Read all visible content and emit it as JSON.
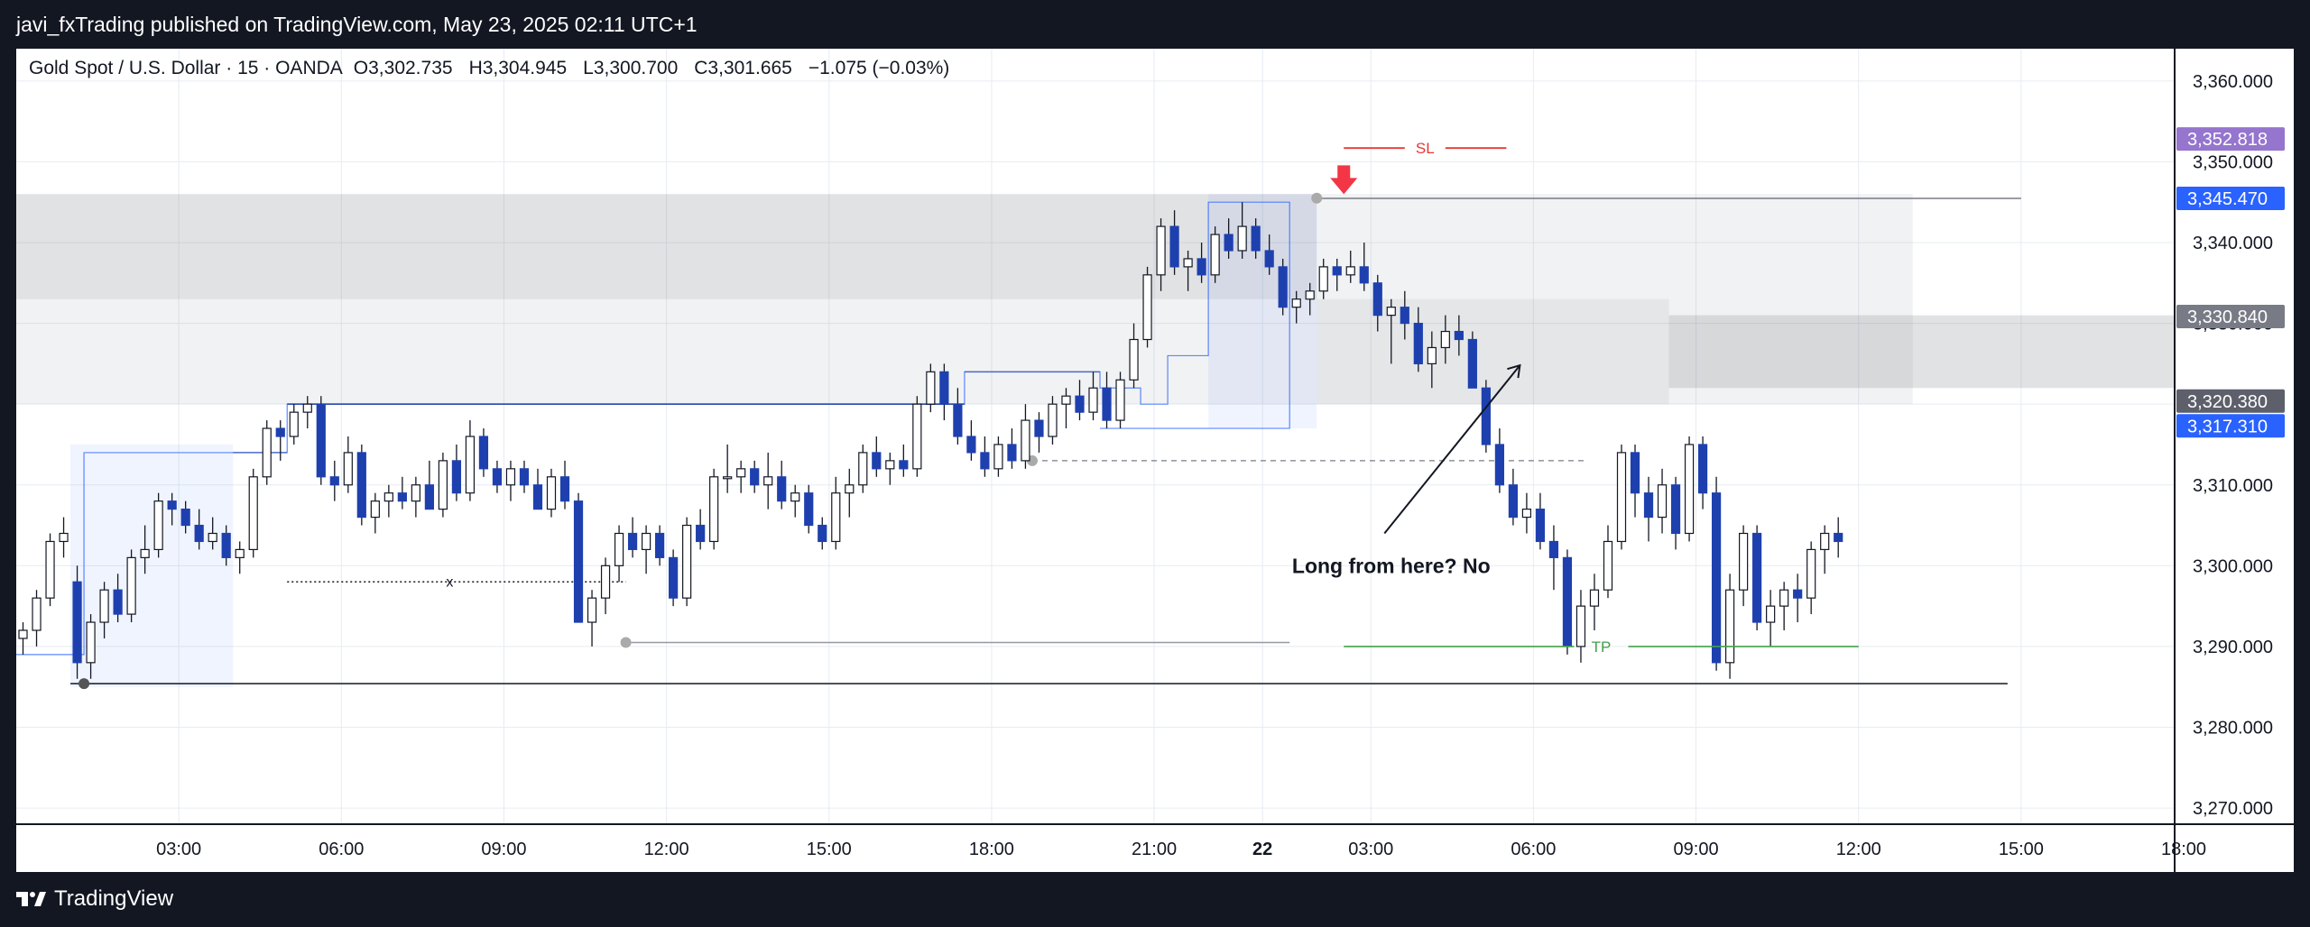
{
  "header": {
    "published": "javi_fxTrading published on TradingView.com, May 23, 2025 02:11 UTC+1"
  },
  "legend": {
    "symbol": "Gold Spot / U.S. Dollar · 15 · OANDA",
    "open": "O3,302.735",
    "high": "H3,304.945",
    "low": "L3,300.700",
    "close": "C3,301.665",
    "change": "−1.075 (−0.03%)"
  },
  "footer": {
    "brand": "TradingView"
  },
  "annotations": {
    "sl": "SL",
    "tp": "TP",
    "x_mark": "x",
    "note": "Long from here? No"
  },
  "colors": {
    "bull": "#ffffff",
    "bear": "#1e40af",
    "sl": "#e53935",
    "tp": "#43a047",
    "arrow": "#f23645",
    "grid": "#e6ecf2",
    "zone": "#d1d4dc"
  },
  "price_tags": [
    {
      "value": 3352.818,
      "label": "3,352.818",
      "color": "#9575cd"
    },
    {
      "value": 3345.47,
      "label": "3,345.470",
      "color": "#2962ff"
    },
    {
      "value": 3330.84,
      "label": "3,330.840",
      "color": "#787b86"
    },
    {
      "value": 3320.38,
      "label": "3,320.380",
      "color": "#5d606b"
    },
    {
      "value": 3317.31,
      "label": "3,317.310",
      "color": "#2962ff"
    }
  ],
  "chart_data": {
    "type": "candlestick",
    "interval": "15m",
    "y_range": [
      3268,
      3364
    ],
    "y_ticks": [
      {
        "value": 3360,
        "label": "3,360.000"
      },
      {
        "value": 3350,
        "label": "3,350.000"
      },
      {
        "value": 3340,
        "label": "3,340.000"
      },
      {
        "value": 3330,
        "label": "3,330.000"
      },
      {
        "value": 3320,
        "label": "3,320.000"
      },
      {
        "value": 3310,
        "label": "3,310.000"
      },
      {
        "value": 3300,
        "label": "3,300.000"
      },
      {
        "value": 3290,
        "label": "3,290.000"
      },
      {
        "value": 3280,
        "label": "3,280.000"
      },
      {
        "value": 3270,
        "label": "3,270.000"
      }
    ],
    "x_range": [
      0,
      158
    ],
    "x_ticks": [
      {
        "x": 12,
        "label": "03:00",
        "bold": false
      },
      {
        "x": 24,
        "label": "06:00",
        "bold": false
      },
      {
        "x": 36,
        "label": "09:00",
        "bold": false
      },
      {
        "x": 48,
        "label": "12:00",
        "bold": false
      },
      {
        "x": 60,
        "label": "15:00",
        "bold": false
      },
      {
        "x": 72,
        "label": "18:00",
        "bold": false
      },
      {
        "x": 84,
        "label": "21:00",
        "bold": false
      },
      {
        "x": 92,
        "label": "22",
        "bold": true
      },
      {
        "x": 100,
        "label": "03:00",
        "bold": false
      },
      {
        "x": 112,
        "label": "06:00",
        "bold": false
      },
      {
        "x": 124,
        "label": "09:00",
        "bold": false
      },
      {
        "x": 136,
        "label": "12:00",
        "bold": false
      },
      {
        "x": 148,
        "label": "15:00",
        "bold": false
      },
      {
        "x": 160,
        "label": "18:00",
        "bold": false
      }
    ],
    "candles": [
      [
        3291,
        3293,
        3289,
        3292
      ],
      [
        3292,
        3297,
        3290,
        3296
      ],
      [
        3296,
        3304,
        3295,
        3303
      ],
      [
        3303,
        3306,
        3301,
        3304
      ],
      [
        3298,
        3300,
        3286,
        3288
      ],
      [
        3288,
        3294,
        3286,
        3293
      ],
      [
        3293,
        3298,
        3291,
        3297
      ],
      [
        3297,
        3299,
        3293,
        3294
      ],
      [
        3294,
        3302,
        3293,
        3301
      ],
      [
        3301,
        3305,
        3299,
        3302
      ],
      [
        3302,
        3309,
        3301,
        3308
      ],
      [
        3308,
        3309,
        3305,
        3307
      ],
      [
        3307,
        3308,
        3304,
        3305
      ],
      [
        3305,
        3307,
        3302,
        3303
      ],
      [
        3303,
        3306,
        3302,
        3304
      ],
      [
        3304,
        3305,
        3300,
        3301
      ],
      [
        3301,
        3303,
        3299,
        3302
      ],
      [
        3302,
        3312,
        3301,
        3311
      ],
      [
        3311,
        3318,
        3310,
        3317
      ],
      [
        3317,
        3318,
        3313,
        3316
      ],
      [
        3316,
        3320,
        3315,
        3319
      ],
      [
        3319,
        3321,
        3317,
        3320
      ],
      [
        3320,
        3321,
        3310,
        3311
      ],
      [
        3311,
        3313,
        3308,
        3310
      ],
      [
        3310,
        3316,
        3309,
        3314
      ],
      [
        3314,
        3315,
        3305,
        3306
      ],
      [
        3306,
        3309,
        3304,
        3308
      ],
      [
        3308,
        3310,
        3306,
        3309
      ],
      [
        3309,
        3311,
        3307,
        3308
      ],
      [
        3308,
        3311,
        3306,
        3310
      ],
      [
        3310,
        3313,
        3307,
        3307
      ],
      [
        3307,
        3314,
        3306,
        3313
      ],
      [
        3313,
        3315,
        3308,
        3309
      ],
      [
        3309,
        3318,
        3308,
        3316
      ],
      [
        3316,
        3317,
        3311,
        3312
      ],
      [
        3312,
        3313,
        3309,
        3310
      ],
      [
        3310,
        3313,
        3308,
        3312
      ],
      [
        3312,
        3313,
        3309,
        3310
      ],
      [
        3310,
        3312,
        3307,
        3307
      ],
      [
        3307,
        3312,
        3306,
        3311
      ],
      [
        3311,
        3313,
        3307,
        3308
      ],
      [
        3308,
        3309,
        3293,
        3293
      ],
      [
        3293,
        3297,
        3290,
        3296
      ],
      [
        3296,
        3301,
        3294,
        3300
      ],
      [
        3300,
        3305,
        3298,
        3304
      ],
      [
        3304,
        3306,
        3301,
        3302
      ],
      [
        3302,
        3305,
        3299,
        3304
      ],
      [
        3304,
        3305,
        3300,
        3301
      ],
      [
        3301,
        3302,
        3295,
        3296
      ],
      [
        3296,
        3306,
        3295,
        3305
      ],
      [
        3305,
        3307,
        3302,
        3303
      ],
      [
        3303,
        3312,
        3302,
        3311
      ],
      [
        3311,
        3315,
        3309,
        3311
      ],
      [
        3311,
        3313,
        3309,
        3312
      ],
      [
        3312,
        3313,
        3309,
        3310
      ],
      [
        3310,
        3314,
        3307,
        3311
      ],
      [
        3311,
        3313,
        3307,
        3308
      ],
      [
        3308,
        3310,
        3306,
        3309
      ],
      [
        3309,
        3310,
        3304,
        3305
      ],
      [
        3305,
        3306,
        3302,
        3303
      ],
      [
        3303,
        3311,
        3302,
        3309
      ],
      [
        3309,
        3312,
        3306,
        3310
      ],
      [
        3310,
        3315,
        3309,
        3314
      ],
      [
        3314,
        3316,
        3311,
        3312
      ],
      [
        3312,
        3314,
        3310,
        3313
      ],
      [
        3313,
        3315,
        3311,
        3312
      ],
      [
        3312,
        3321,
        3311,
        3320
      ],
      [
        3320,
        3325,
        3319,
        3324
      ],
      [
        3324,
        3325,
        3318,
        3320
      ],
      [
        3320,
        3322,
        3315,
        3316
      ],
      [
        3316,
        3318,
        3313,
        3314
      ],
      [
        3314,
        3316,
        3311,
        3312
      ],
      [
        3312,
        3316,
        3311,
        3315
      ],
      [
        3315,
        3317,
        3312,
        3313
      ],
      [
        3313,
        3320,
        3312,
        3318
      ],
      [
        3318,
        3319,
        3314,
        3316
      ],
      [
        3316,
        3321,
        3315,
        3320
      ],
      [
        3320,
        3322,
        3317,
        3321
      ],
      [
        3321,
        3323,
        3318,
        3319
      ],
      [
        3319,
        3324,
        3318,
        3322
      ],
      [
        3322,
        3324,
        3317,
        3318
      ],
      [
        3318,
        3324,
        3317,
        3323
      ],
      [
        3323,
        3330,
        3322,
        3328
      ],
      [
        3328,
        3337,
        3327,
        3336
      ],
      [
        3336,
        3343,
        3334,
        3342
      ],
      [
        3342,
        3344,
        3336,
        3337
      ],
      [
        3337,
        3339,
        3334,
        3338
      ],
      [
        3338,
        3340,
        3335,
        3336
      ],
      [
        3336,
        3342,
        3335,
        3341
      ],
      [
        3341,
        3343,
        3338,
        3339
      ],
      [
        3339,
        3345,
        3338,
        3342
      ],
      [
        3342,
        3343,
        3338,
        3339
      ],
      [
        3339,
        3341,
        3336,
        3337
      ],
      [
        3337,
        3338,
        3331,
        3332
      ],
      [
        3332,
        3334,
        3330,
        3333
      ],
      [
        3333,
        3335,
        3331,
        3334
      ],
      [
        3334,
        3338,
        3333,
        3337
      ],
      [
        3337,
        3338,
        3334,
        3336
      ],
      [
        3336,
        3339,
        3335,
        3337
      ],
      [
        3337,
        3340,
        3334,
        3335
      ],
      [
        3335,
        3336,
        3329,
        3331
      ],
      [
        3331,
        3333,
        3325,
        3332
      ],
      [
        3332,
        3334,
        3328,
        3330
      ],
      [
        3330,
        3332,
        3324,
        3325
      ],
      [
        3325,
        3329,
        3322,
        3327
      ],
      [
        3327,
        3331,
        3325,
        3329
      ],
      [
        3329,
        3331,
        3326,
        3328
      ],
      [
        3328,
        3329,
        3322,
        3322
      ],
      [
        3322,
        3323,
        3314,
        3315
      ],
      [
        3315,
        3317,
        3309,
        3310
      ],
      [
        3310,
        3312,
        3305,
        3306
      ],
      [
        3306,
        3309,
        3304,
        3307
      ],
      [
        3307,
        3309,
        3302,
        3303
      ],
      [
        3303,
        3305,
        3297,
        3301
      ],
      [
        3301,
        3302,
        3289,
        3290
      ],
      [
        3290,
        3297,
        3288,
        3295
      ],
      [
        3295,
        3299,
        3292,
        3297
      ],
      [
        3297,
        3305,
        3296,
        3303
      ],
      [
        3303,
        3315,
        3302,
        3314
      ],
      [
        3314,
        3315,
        3306,
        3309
      ],
      [
        3309,
        3311,
        3303,
        3306
      ],
      [
        3306,
        3312,
        3304,
        3310
      ],
      [
        3310,
        3311,
        3302,
        3304
      ],
      [
        3304,
        3316,
        3303,
        3315
      ],
      [
        3315,
        3316,
        3307,
        3309
      ],
      [
        3309,
        3311,
        3287,
        3288
      ],
      [
        3288,
        3299,
        3286,
        3297
      ],
      [
        3297,
        3305,
        3295,
        3304
      ],
      [
        3304,
        3305,
        3292,
        3293
      ],
      [
        3293,
        3297,
        3290,
        3295
      ],
      [
        3295,
        3298,
        3292,
        3297
      ],
      [
        3297,
        3299,
        3293,
        3296
      ],
      [
        3296,
        3303,
        3294,
        3302
      ],
      [
        3302,
        3305,
        3299,
        3304
      ],
      [
        3304,
        3306,
        3301,
        3303
      ]
    ],
    "volume_profile_line": [
      [
        0,
        3289
      ],
      [
        5,
        3289
      ],
      [
        5,
        3314
      ],
      [
        20,
        3314
      ],
      [
        20,
        3320
      ],
      [
        70,
        3320
      ],
      [
        70,
        3324
      ],
      [
        80,
        3324
      ],
      [
        80,
        3322
      ],
      [
        83,
        3322
      ],
      [
        83,
        3320
      ],
      [
        85,
        3320
      ],
      [
        85,
        3326
      ],
      [
        88,
        3326
      ],
      [
        88,
        3345
      ],
      [
        94,
        3345
      ],
      [
        94,
        3317
      ],
      [
        80,
        3317
      ]
    ],
    "zones": [
      {
        "x0": 0,
        "x1": 96,
        "y0": 3346,
        "y1": 3333,
        "shade": "dark"
      },
      {
        "x0": 0,
        "x1": 122,
        "y0": 3333,
        "y1": 3320,
        "shade": "light"
      },
      {
        "x0": 96,
        "x1": 140,
        "y0": 3346,
        "y1": 3320,
        "shade": "light"
      },
      {
        "x0": 88,
        "x1": 96,
        "y0": 3346,
        "y1": 3317,
        "shade": "blue"
      },
      {
        "x0": 122,
        "x1": 160,
        "y0": 3331,
        "y1": 3322,
        "shade": "dark"
      },
      {
        "x0": 4,
        "x1": 16,
        "y0": 3315,
        "y1": 3285,
        "shade": "blue"
      }
    ]
  }
}
